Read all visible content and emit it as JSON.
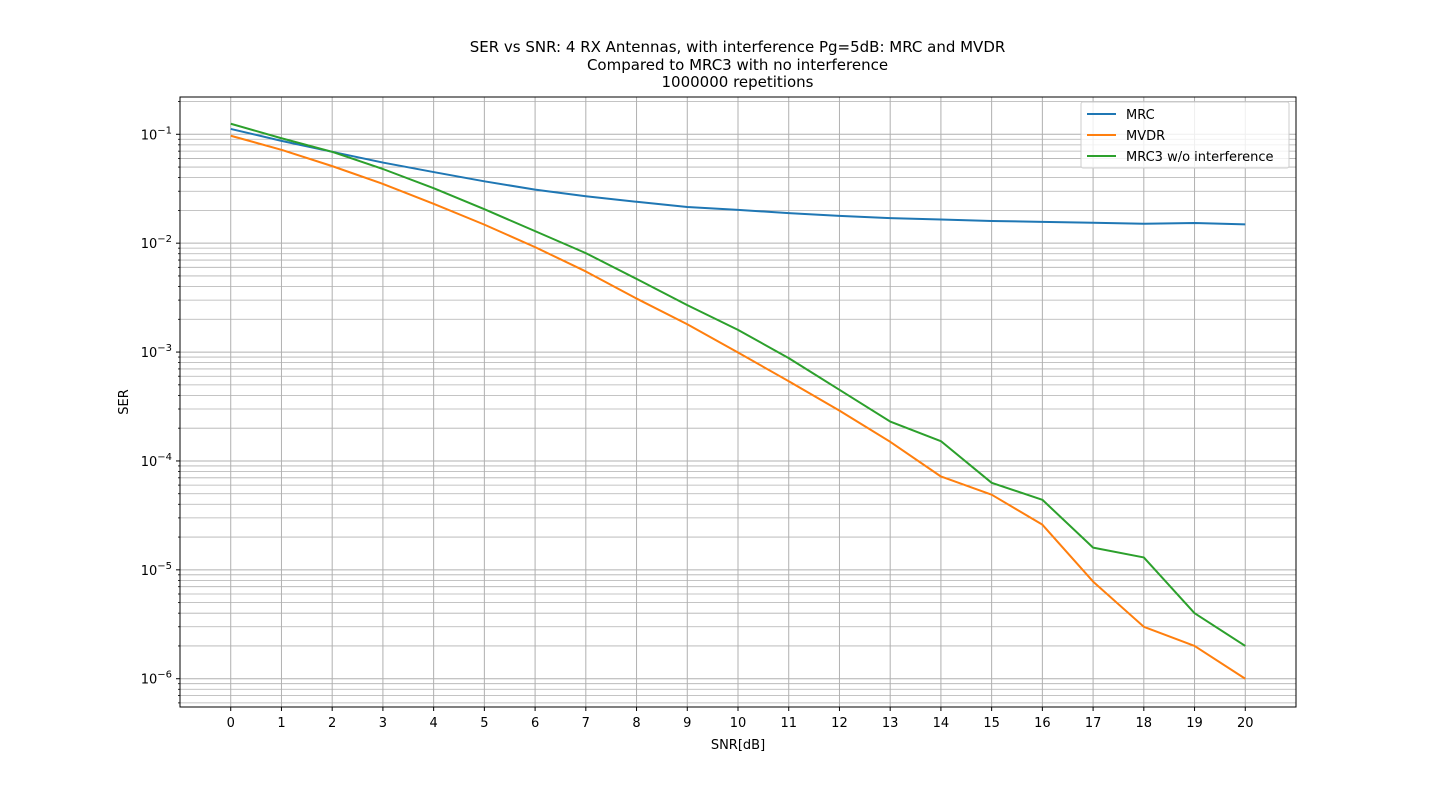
{
  "chart_data": {
    "type": "line",
    "title_lines": [
      "SER vs SNR: 4 RX Antennas, with interference Pg=5dB: MRC and MVDR",
      "Compared to MRC3 with no interference",
      "1000000 repetitions"
    ],
    "xlabel": "SNR[dB]",
    "ylabel": "SER",
    "y_scale": "log",
    "xlim": [
      -1,
      21
    ],
    "ylim": [
      5.5e-07,
      0.22
    ],
    "grid": true,
    "grid_minor": true,
    "legend_position": "top-right",
    "x_ticks": [
      0,
      1,
      2,
      3,
      4,
      5,
      6,
      7,
      8,
      9,
      10,
      11,
      12,
      13,
      14,
      15,
      16,
      17,
      18,
      19,
      20
    ],
    "y_ticks": [
      {
        "value": 1e-06,
        "base": "10",
        "exp": "−6"
      },
      {
        "value": 1e-05,
        "base": "10",
        "exp": "−5"
      },
      {
        "value": 0.0001,
        "base": "10",
        "exp": "−4"
      },
      {
        "value": 0.001,
        "base": "10",
        "exp": "−3"
      },
      {
        "value": 0.01,
        "base": "10",
        "exp": "−2"
      },
      {
        "value": 0.1,
        "base": "10",
        "exp": "−1"
      }
    ],
    "x": [
      0,
      1,
      2,
      3,
      4,
      5,
      6,
      7,
      8,
      9,
      10,
      11,
      12,
      13,
      14,
      15,
      16,
      17,
      18,
      19,
      20
    ],
    "series": [
      {
        "name": "MRC",
        "color": "#1f77b4",
        "values": [
          0.112,
          0.087,
          0.069,
          0.055,
          0.045,
          0.037,
          0.031,
          0.027,
          0.024,
          0.0215,
          0.0202,
          0.0189,
          0.0178,
          0.017,
          0.0165,
          0.016,
          0.0157,
          0.0154,
          0.0151,
          0.0153,
          0.0149
        ]
      },
      {
        "name": "MVDR",
        "color": "#ff7f0e",
        "values": [
          0.097,
          0.072,
          0.051,
          0.035,
          0.023,
          0.0148,
          0.0092,
          0.0055,
          0.0031,
          0.0018,
          0.00099,
          0.00054,
          0.00029,
          0.00015,
          7.2e-05,
          4.9e-05,
          2.6e-05,
          7.8e-06,
          3e-06,
          2e-06,
          1e-06
        ]
      },
      {
        "name": "MRC3 w/o interference",
        "color": "#2ca02c",
        "values": [
          0.125,
          0.092,
          0.069,
          0.048,
          0.032,
          0.0205,
          0.0129,
          0.0081,
          0.0047,
          0.0027,
          0.0016,
          0.00088,
          0.00045,
          0.00023,
          0.000152,
          6.3e-05,
          4.4e-05,
          1.6e-05,
          1.3e-05,
          4e-06,
          2e-06
        ]
      }
    ]
  }
}
